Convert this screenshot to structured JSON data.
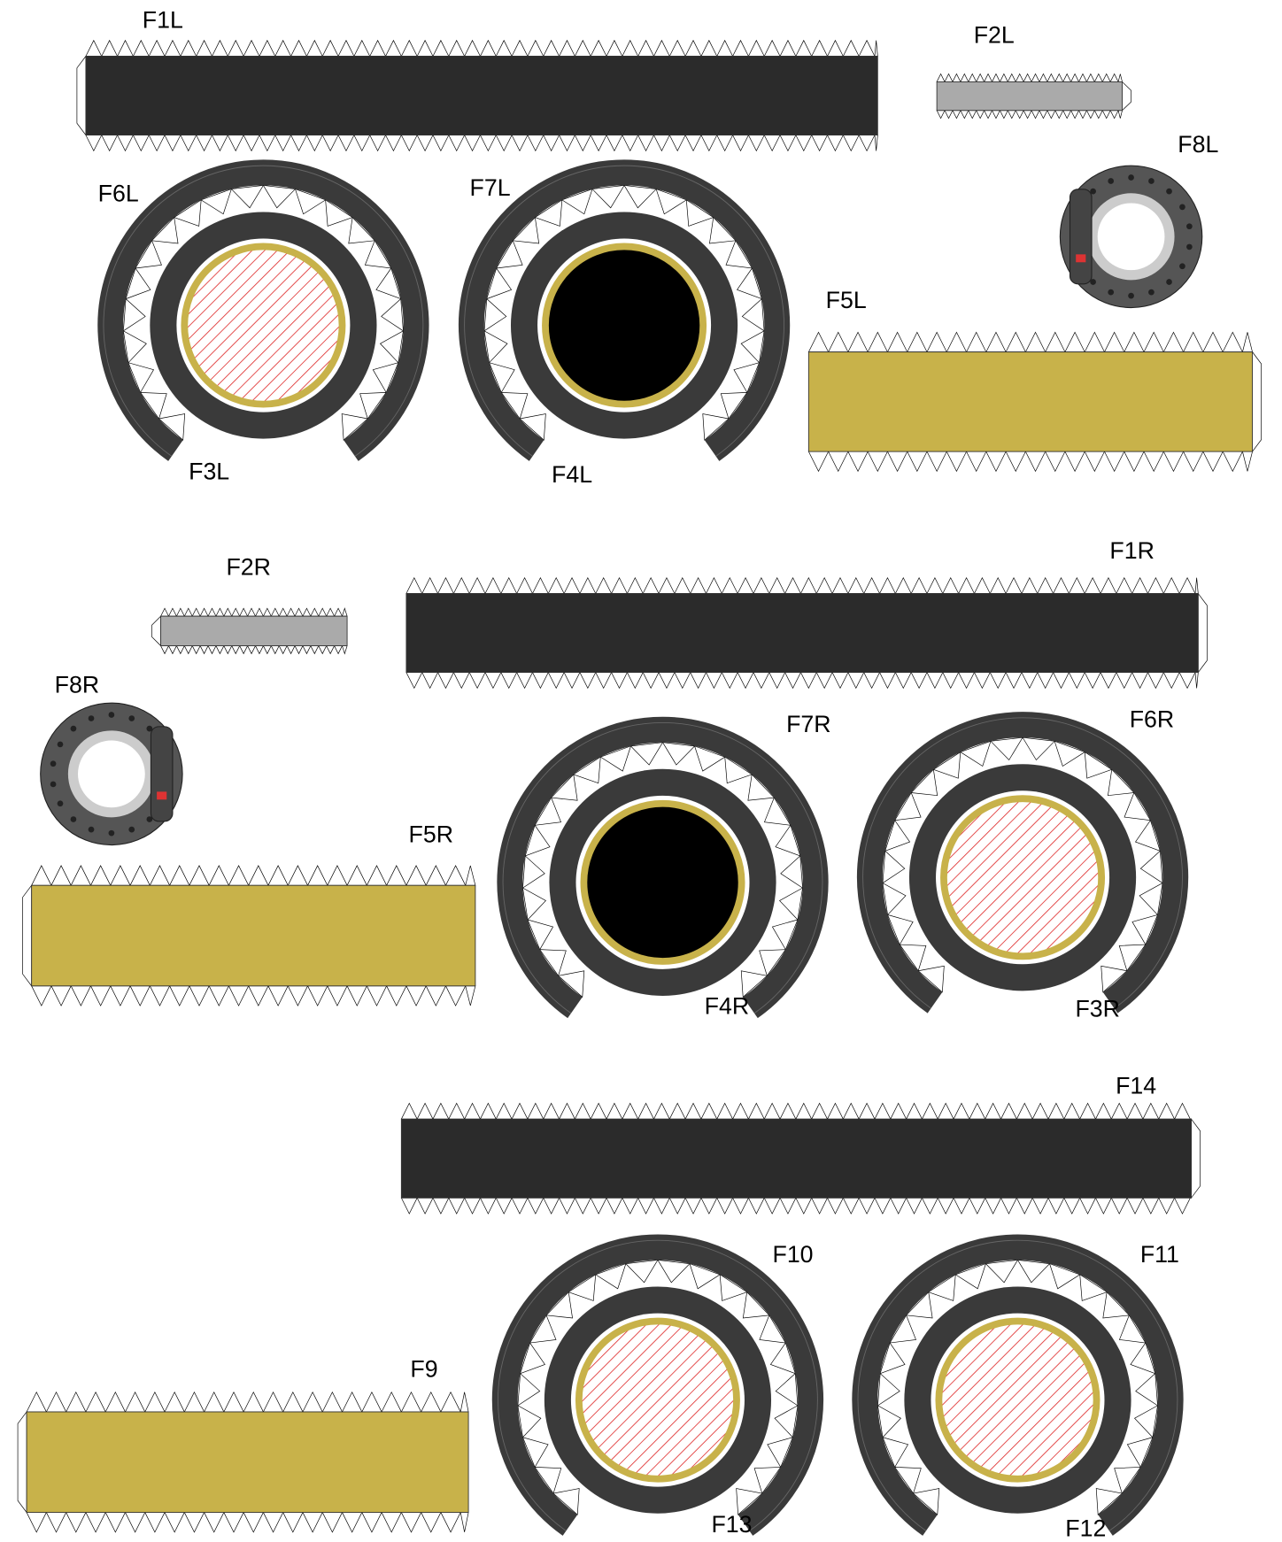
{
  "labels": [
    "F1L",
    "F2L",
    "F8L",
    "F6L",
    "F7L",
    "F5L",
    "F3L",
    "F4L",
    "F2R",
    "F1R",
    "F8R",
    "F7R",
    "F6R",
    "F5R",
    "F4R",
    "F3R",
    "F14",
    "F10",
    "F11",
    "F9",
    "F13",
    "F12"
  ]
}
